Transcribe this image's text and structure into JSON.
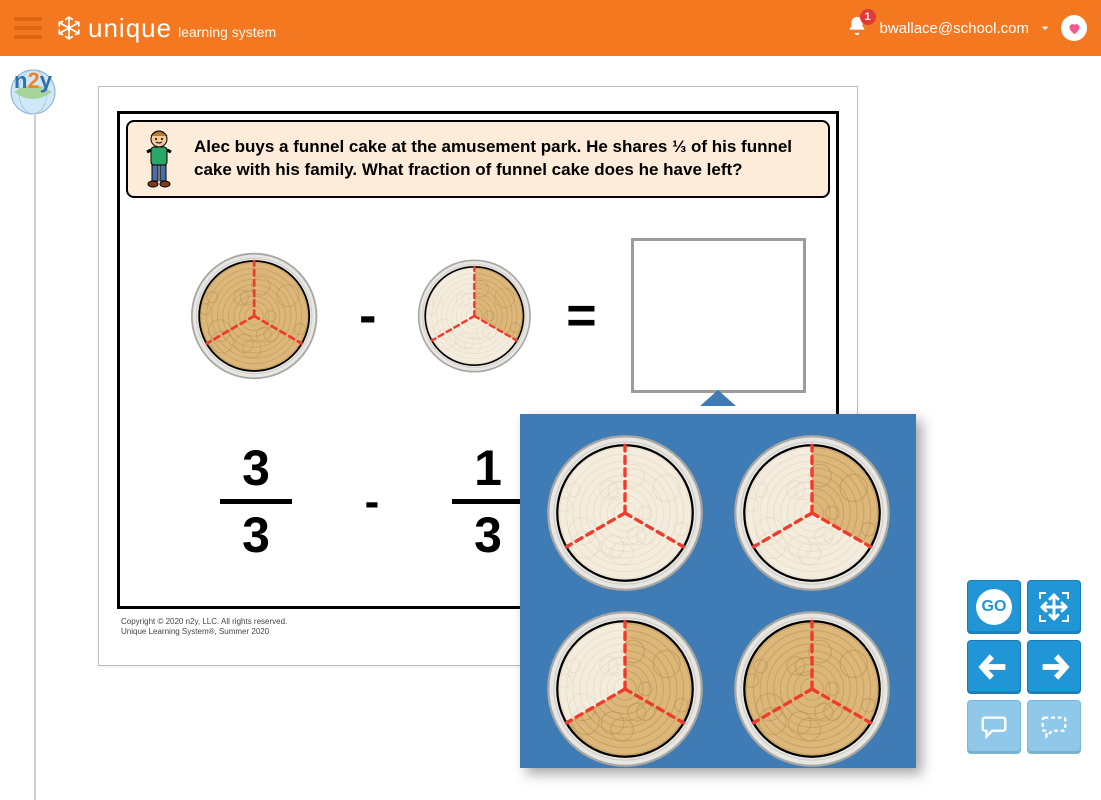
{
  "header": {
    "brand_main": "unique",
    "brand_sub": "learning system",
    "notification_count": "1",
    "user_email": "bwallace@school.com",
    "colors": {
      "bg": "#f47820",
      "hamburger": "#de6612",
      "text": "#ffffff",
      "badge": "#e03a3a",
      "heart": "#f05a8c"
    }
  },
  "globe_label": "n2y",
  "question": {
    "text": "Alec buys a funnel cake at the amusement park.  He shares ⅓ of his funnel cake with his family.  What fraction of funnel cake does he have left?",
    "bg": "#fdecd9"
  },
  "equation": {
    "minus": "-",
    "equals": "=",
    "frac1_top": "3",
    "frac1_bot": "3",
    "frac2_top": "1",
    "frac2_bot": "3",
    "cake1_shaded_thirds": 3,
    "cake2_shaded_thirds": 1
  },
  "answer_options": [
    {
      "shaded_thirds": 0
    },
    {
      "shaded_thirds": 1
    },
    {
      "shaded_thirds": 2
    },
    {
      "shaded_thirds": 3
    }
  ],
  "answer_popup": {
    "bg": "#3f7cb6"
  },
  "cake_style": {
    "plate": "#e7e6e2",
    "plate_edge": "#a9a7a1",
    "crust_fill": "#dcb779",
    "crust_fill_faded": "#f4ecdd",
    "crust_stroke": "#8a6c34",
    "divider": "#ef3b2c",
    "divider_width": 3,
    "divider_dash": "6,5"
  },
  "copyright": {
    "line1": "Copyright © 2020 n2y, LLC.  All rights reserved.",
    "line2": "Unique Learning System®, Summer 2020"
  },
  "controls": {
    "go_label": "GO",
    "btn_color": "#2196d6",
    "btn_faded": "#8fc8e8"
  }
}
